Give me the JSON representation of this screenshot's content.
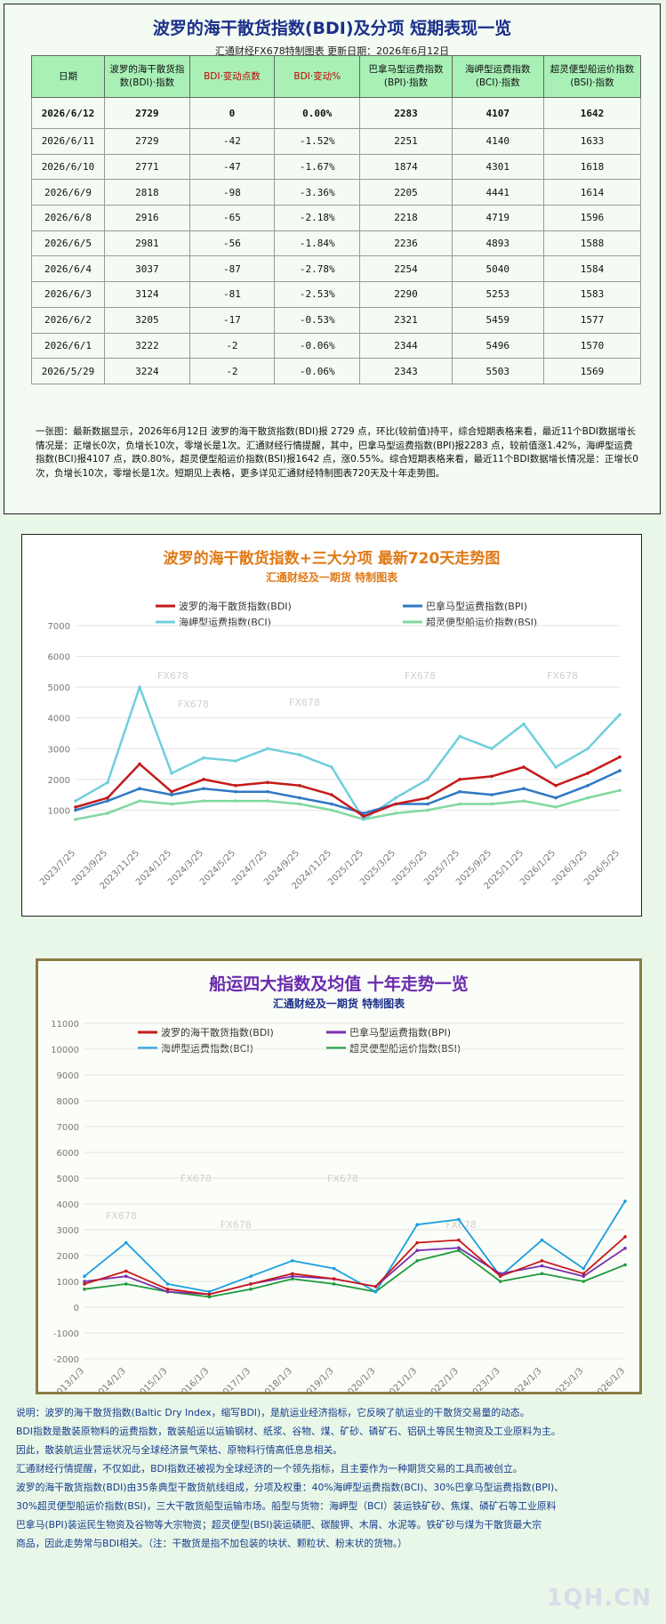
{
  "header": {
    "title": "波罗的海干散货指数(BDI)及分项  短期表现一览",
    "subtitle": "汇通财经FX678特制图表      更新日期：2026年6月12日"
  },
  "table": {
    "columns": [
      "日期",
      "波罗的海干散货指数(BDI)·指数",
      "BDI·变动点数",
      "BDI·变动%",
      "巴拿马型运费指数(BPI)·指数",
      "海岬型运费指数(BCI)·指数",
      "超灵便型船运价指数(BSI)·指数"
    ],
    "rows": [
      [
        "2026/6/12",
        "2729",
        "0",
        "0.00%",
        "2283",
        "4107",
        "1642"
      ],
      [
        "2026/6/11",
        "2729",
        "-42",
        "-1.52%",
        "2251",
        "4140",
        "1633"
      ],
      [
        "2026/6/10",
        "2771",
        "-47",
        "-1.67%",
        "1874",
        "4301",
        "1618"
      ],
      [
        "2026/6/9",
        "2818",
        "-98",
        "-3.36%",
        "2205",
        "4441",
        "1614"
      ],
      [
        "2026/6/8",
        "2916",
        "-65",
        "-2.18%",
        "2218",
        "4719",
        "1596"
      ],
      [
        "2026/6/5",
        "2981",
        "-56",
        "-1.84%",
        "2236",
        "4893",
        "1588"
      ],
      [
        "2026/6/4",
        "3037",
        "-87",
        "-2.78%",
        "2254",
        "5040",
        "1584"
      ],
      [
        "2026/6/3",
        "3124",
        "-81",
        "-2.53%",
        "2290",
        "5253",
        "1583"
      ],
      [
        "2026/6/2",
        "3205",
        "-17",
        "-0.53%",
        "2321",
        "5459",
        "1577"
      ],
      [
        "2026/6/1",
        "3222",
        "-2",
        "-0.06%",
        "2344",
        "5496",
        "1570"
      ],
      [
        "2026/5/29",
        "3224",
        "-2",
        "-0.06%",
        "2343",
        "5503",
        "1569"
      ]
    ]
  },
  "note": "一张图：最新数据显示，2026年6月12日 波罗的海干散货指数(BDI)报 2729 点，环比(较前值)持平，综合短期表格来看，最近11个BDI数据增长情况是：正增长0次，负增长10次，零增长是1次。汇通财经行情提醒，其中，巴拿马型运费指数(BPI)报2283 点，较前值涨1.42%，海岬型运费指数(BCI)报4107 点，跌0.80%，超灵便型船运价指数(BSI)报1642 点，涨0.55%。综合短期表格来看，最近11个BDI数据增长情况是：正增长0次，负增长10次，零增长是1次。短期见上表格，更多详见汇通财经特制图表720天及十年走势图。",
  "chart_data": [
    {
      "type": "line",
      "title": "波罗的海干散货指数+三大分项  最新720天走势图",
      "subtitle": "汇通财经及一期货  特制图表",
      "watermark": "FX678",
      "x": [
        "2023/7/25",
        "2023/9/25",
        "2023/11/25",
        "2024/1/25",
        "2024/3/25",
        "2024/5/25",
        "2024/7/25",
        "2024/9/25",
        "2024/11/25",
        "2025/1/25",
        "2025/3/25",
        "2025/5/25",
        "2025/7/25",
        "2025/9/25",
        "2025/11/25",
        "2026/1/25",
        "2026/3/25",
        "2026/5/25"
      ],
      "ylim": [
        0,
        7000
      ],
      "yticks": [
        1000,
        2000,
        3000,
        4000,
        5000,
        6000,
        7000
      ],
      "grid": true,
      "legend": "top",
      "series": [
        {
          "name": "波罗的海干散货指数(BDI)",
          "color": "#c41a1a",
          "values": [
            1100,
            1400,
            2500,
            1600,
            2000,
            1800,
            1900,
            1800,
            1500,
            800,
            1200,
            1400,
            2000,
            2100,
            2400,
            1800,
            2200,
            2729
          ]
        },
        {
          "name": "巴拿马型运费指数(BPI)",
          "color": "#2f78c4",
          "values": [
            1000,
            1300,
            1700,
            1500,
            1700,
            1600,
            1600,
            1400,
            1200,
            900,
            1200,
            1200,
            1600,
            1500,
            1700,
            1400,
            1800,
            2283
          ]
        },
        {
          "name": "海岬型运费指数(BCI)",
          "color": "#6fcfdc",
          "values": [
            1300,
            1900,
            5000,
            2200,
            2700,
            2600,
            3000,
            2800,
            2400,
            700,
            1400,
            2000,
            3400,
            3000,
            3800,
            2400,
            3000,
            4107
          ]
        },
        {
          "name": "超灵便型船运价指数(BSI)",
          "color": "#7fd9a0",
          "values": [
            700,
            900,
            1300,
            1200,
            1300,
            1300,
            1300,
            1200,
            1000,
            700,
            900,
            1000,
            1200,
            1200,
            1300,
            1100,
            1400,
            1642
          ]
        }
      ]
    },
    {
      "type": "line",
      "title": "船运四大指数及均值 十年走势一览",
      "subtitle": "汇通财经及一期货 特制图表",
      "watermark": "FX678",
      "x": [
        "2013/1/3",
        "2014/1/3",
        "2015/1/3",
        "2016/1/3",
        "2017/1/3",
        "2018/1/3",
        "2019/1/3",
        "2020/1/3",
        "2021/1/3",
        "2022/1/3",
        "2023/1/3",
        "2024/1/3",
        "2025/1/3",
        "2026/1/3"
      ],
      "ylim": [
        -2000,
        11000
      ],
      "yticks": [
        -2000,
        -1000,
        0,
        1000,
        2000,
        3000,
        4000,
        5000,
        6000,
        7000,
        8000,
        9000,
        10000,
        11000
      ],
      "grid": true,
      "legend": "top",
      "series": [
        {
          "name": "波罗的海干散货指数(BDI)",
          "color": "#c41a1a",
          "values": [
            900,
            1400,
            700,
            500,
            900,
            1300,
            1100,
            800,
            2500,
            2600,
            1200,
            1800,
            1300,
            2729
          ]
        },
        {
          "name": "巴拿马型运费指数(BPI)",
          "color": "#7b2fb0",
          "values": [
            1000,
            1200,
            600,
            500,
            900,
            1200,
            1100,
            800,
            2200,
            2300,
            1300,
            1600,
            1200,
            2283
          ]
        },
        {
          "name": "海岬型运费指数(BCI)",
          "color": "#1a9ee0",
          "values": [
            1200,
            2500,
            900,
            600,
            1200,
            1800,
            1500,
            600,
            3200,
            3400,
            1200,
            2600,
            1500,
            4107
          ]
        },
        {
          "name": "超灵便型船运价指数(BSI)",
          "color": "#1e9a3c",
          "values": [
            700,
            900,
            600,
            400,
            700,
            1100,
            900,
            600,
            1800,
            2200,
            1000,
            1300,
            1000,
            1642
          ]
        }
      ]
    }
  ],
  "footer": [
    "说明：波罗的海干散货指数(Baltic Dry Index，缩写BDI)，是航运业经济指标，它反映了航运业的干散货交易量的动态。",
    "BDI指数是散装原物料的运费指数，散装船运以运输钢材、纸浆、谷物、煤、矿砂、磷矿石、铝矾土等民生物资及工业原料为主。",
    "因此，散装航运业营运状况与全球经济景气荣枯、原物料行情高低息息相关。",
    "汇通财经行情提醒，不仅如此，BDI指数还被视为全球经济的一个领先指标，且主要作为一种期货交易的工具而被创立。",
    "波罗的海干散货指数(BDI)由35条典型干散货航线组成，分项及权重：40%海岬型运费指数(BCI)、30%巴拿马型运费指数(BPI)、",
    "30%超灵便型船运价指数(BSI)，三大干散货船型运输市场。船型与货物：海岬型（BCI）装运铁矿砂、焦煤、磷矿石等工业原料",
    "巴拿马(BPI)装运民生物资及谷物等大宗物资；超灵便型(BSI)装运磷肥、碳酸钾、木屑、水泥等。铁矿砂与煤为干散货最大宗",
    "商品，因此走势常与BDI相关。（注：干散货是指不加包装的块状、颗粒状、粉末状的货物。）"
  ],
  "logo": "1QH.CN"
}
